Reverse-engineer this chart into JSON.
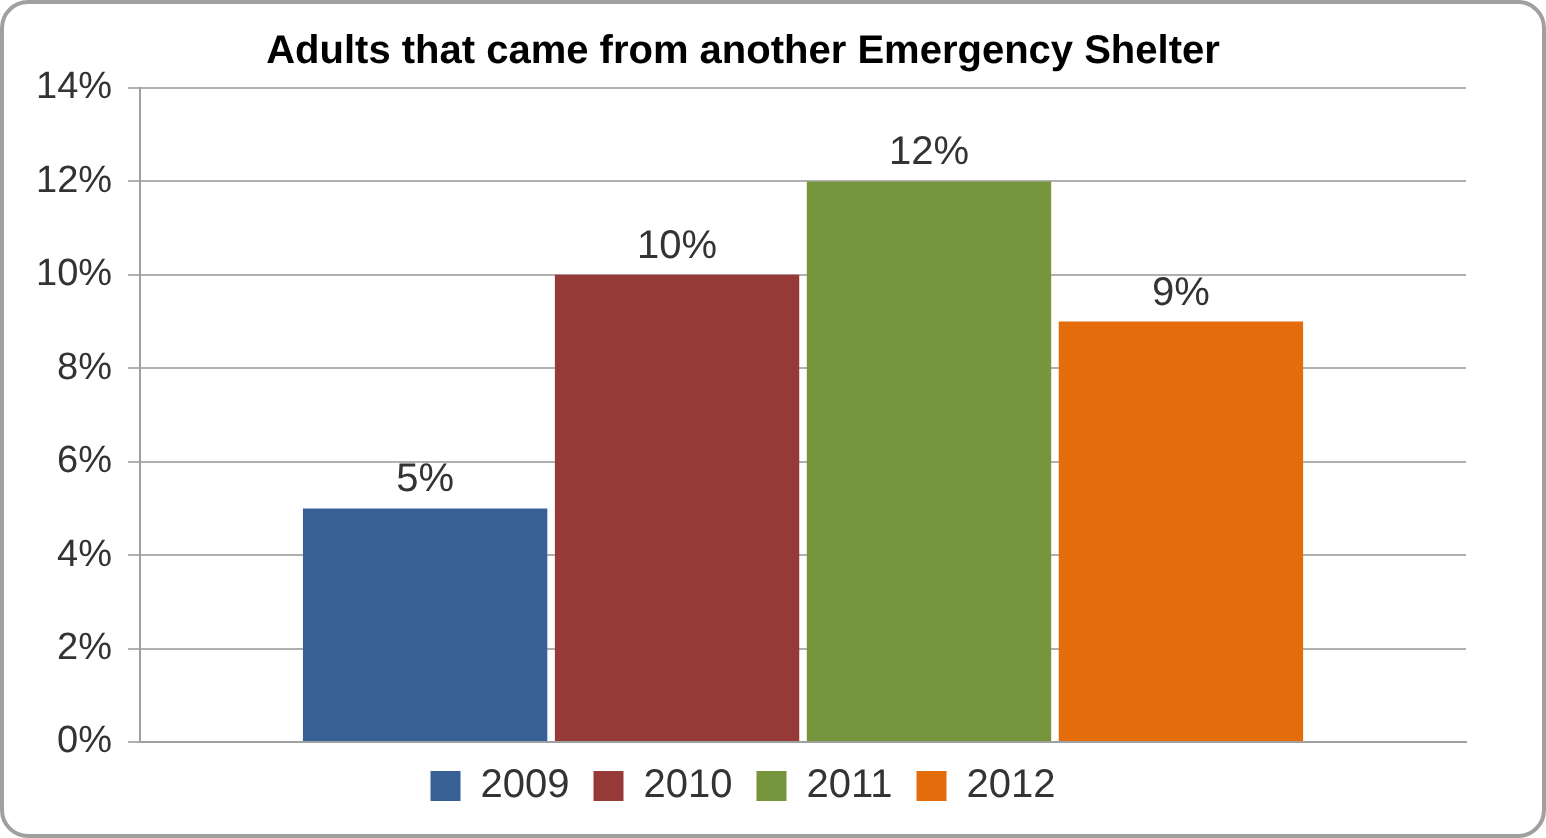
{
  "chart_data": {
    "type": "bar",
    "title": "Adults that came from another Emergency Shelter",
    "categories": [
      null
    ],
    "series": [
      {
        "name": "2009",
        "color": "#386096",
        "values": [
          5
        ],
        "value_labels": [
          "5%"
        ]
      },
      {
        "name": "2010",
        "color": "#963a38",
        "values": [
          10
        ],
        "value_labels": [
          "10%"
        ]
      },
      {
        "name": "2011",
        "color": "#77953d",
        "values": [
          12
        ],
        "value_labels": [
          "12%"
        ]
      },
      {
        "name": "2012",
        "color": "#e46c0a",
        "values": [
          9
        ],
        "value_labels": [
          "9%"
        ]
      }
    ],
    "ylim": [
      0,
      14
    ],
    "yticks": [
      {
        "value": 0,
        "label": "0%"
      },
      {
        "value": 2,
        "label": "2%"
      },
      {
        "value": 4,
        "label": "4%"
      },
      {
        "value": 6,
        "label": "6%"
      },
      {
        "value": 8,
        "label": "8%"
      },
      {
        "value": 10,
        "label": "10%"
      },
      {
        "value": 12,
        "label": "12%"
      },
      {
        "value": 14,
        "label": "14%"
      }
    ],
    "grid": "y",
    "legend": "bottom"
  }
}
